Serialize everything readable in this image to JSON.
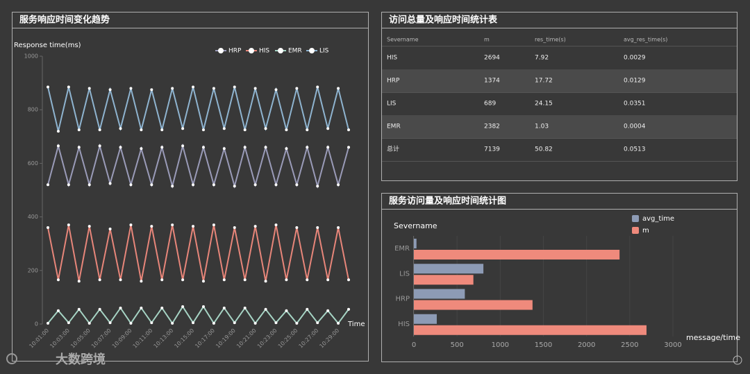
{
  "chart_data": [
    {
      "type": "line",
      "title": "服务响应时间变化趋势",
      "y_label": "Response time(ms)",
      "x_label": "Time",
      "categories": [
        "10:01:00",
        null,
        "10:03:00",
        null,
        "10:05:00",
        null,
        "10:07:00",
        null,
        "10:09:00",
        null,
        "10:11:00",
        null,
        "10:13:00",
        null,
        "10:15:00",
        null,
        "10:17:00",
        null,
        "10:19:00",
        null,
        "10:21:00",
        null,
        "10:23:00",
        null,
        "10:25:00",
        null,
        "10:27:00",
        null,
        "10:29:00",
        null
      ],
      "series": [
        {
          "name": "HRP",
          "color": "#9a9bb8",
          "values": [
            520,
            665,
            520,
            660,
            520,
            665,
            525,
            660,
            520,
            655,
            520,
            660,
            515,
            665,
            520,
            660,
            520,
            655,
            515,
            660,
            520,
            660,
            520,
            655,
            520,
            660,
            515,
            660,
            520,
            660
          ]
        },
        {
          "name": "HIS",
          "color": "#e8867a",
          "values": [
            360,
            165,
            370,
            160,
            365,
            165,
            355,
            165,
            370,
            160,
            365,
            165,
            370,
            165,
            365,
            160,
            370,
            165,
            360,
            165,
            365,
            160,
            370,
            165,
            360,
            165,
            360,
            165,
            360,
            165
          ]
        },
        {
          "name": "EMR",
          "color": "#a6d4c4",
          "values": [
            3,
            50,
            5,
            55,
            3,
            55,
            5,
            60,
            3,
            60,
            5,
            60,
            3,
            65,
            5,
            65,
            3,
            60,
            5,
            60,
            3,
            55,
            5,
            50,
            3,
            55,
            5,
            50,
            3,
            55
          ]
        },
        {
          "name": "LIS",
          "color": "#8fb4d0",
          "values": [
            885,
            720,
            885,
            725,
            880,
            725,
            875,
            730,
            880,
            725,
            875,
            725,
            880,
            730,
            885,
            725,
            880,
            730,
            885,
            725,
            880,
            730,
            875,
            725,
            880,
            725,
            885,
            730,
            880,
            725
          ]
        }
      ],
      "ylim": [
        0,
        1000
      ],
      "yticks": [
        0,
        200,
        400,
        600,
        800,
        1000
      ],
      "legend": "top-right"
    },
    {
      "type": "hbar",
      "title": "服务访问量及响应时间统计图",
      "y_label": "Severname",
      "x_label": "message/time",
      "categories": [
        "HIS",
        "HRP",
        "LIS",
        "EMR"
      ],
      "series": [
        {
          "name": "avg_time",
          "color": "#8d9bb5",
          "values": [
            265,
            590,
            805,
            30
          ]
        },
        {
          "name": "m",
          "color": "#ef8a7c",
          "values": [
            2694,
            1374,
            689,
            2382
          ]
        }
      ],
      "xlim": [
        0,
        3000
      ],
      "xticks": [
        0,
        500,
        1000,
        1500,
        2000,
        2500,
        3000
      ],
      "legend": "top-right"
    }
  ],
  "table": {
    "title": "访问总量及响应时间统计表",
    "columns": [
      "Severname",
      "m",
      "res_time(s)",
      "avg_res_time(s)"
    ],
    "rows": [
      [
        "HIS",
        "2694",
        "7.92",
        "0.0029"
      ],
      [
        "HRP",
        "1374",
        "17.72",
        "0.0129"
      ],
      [
        "LIS",
        "689",
        "24.15",
        "0.0351"
      ],
      [
        "EMR",
        "2382",
        "1.03",
        "0.0004"
      ],
      [
        "总计",
        "7139",
        "50.82",
        "0.0513"
      ]
    ]
  },
  "watermark": "大数跨境"
}
